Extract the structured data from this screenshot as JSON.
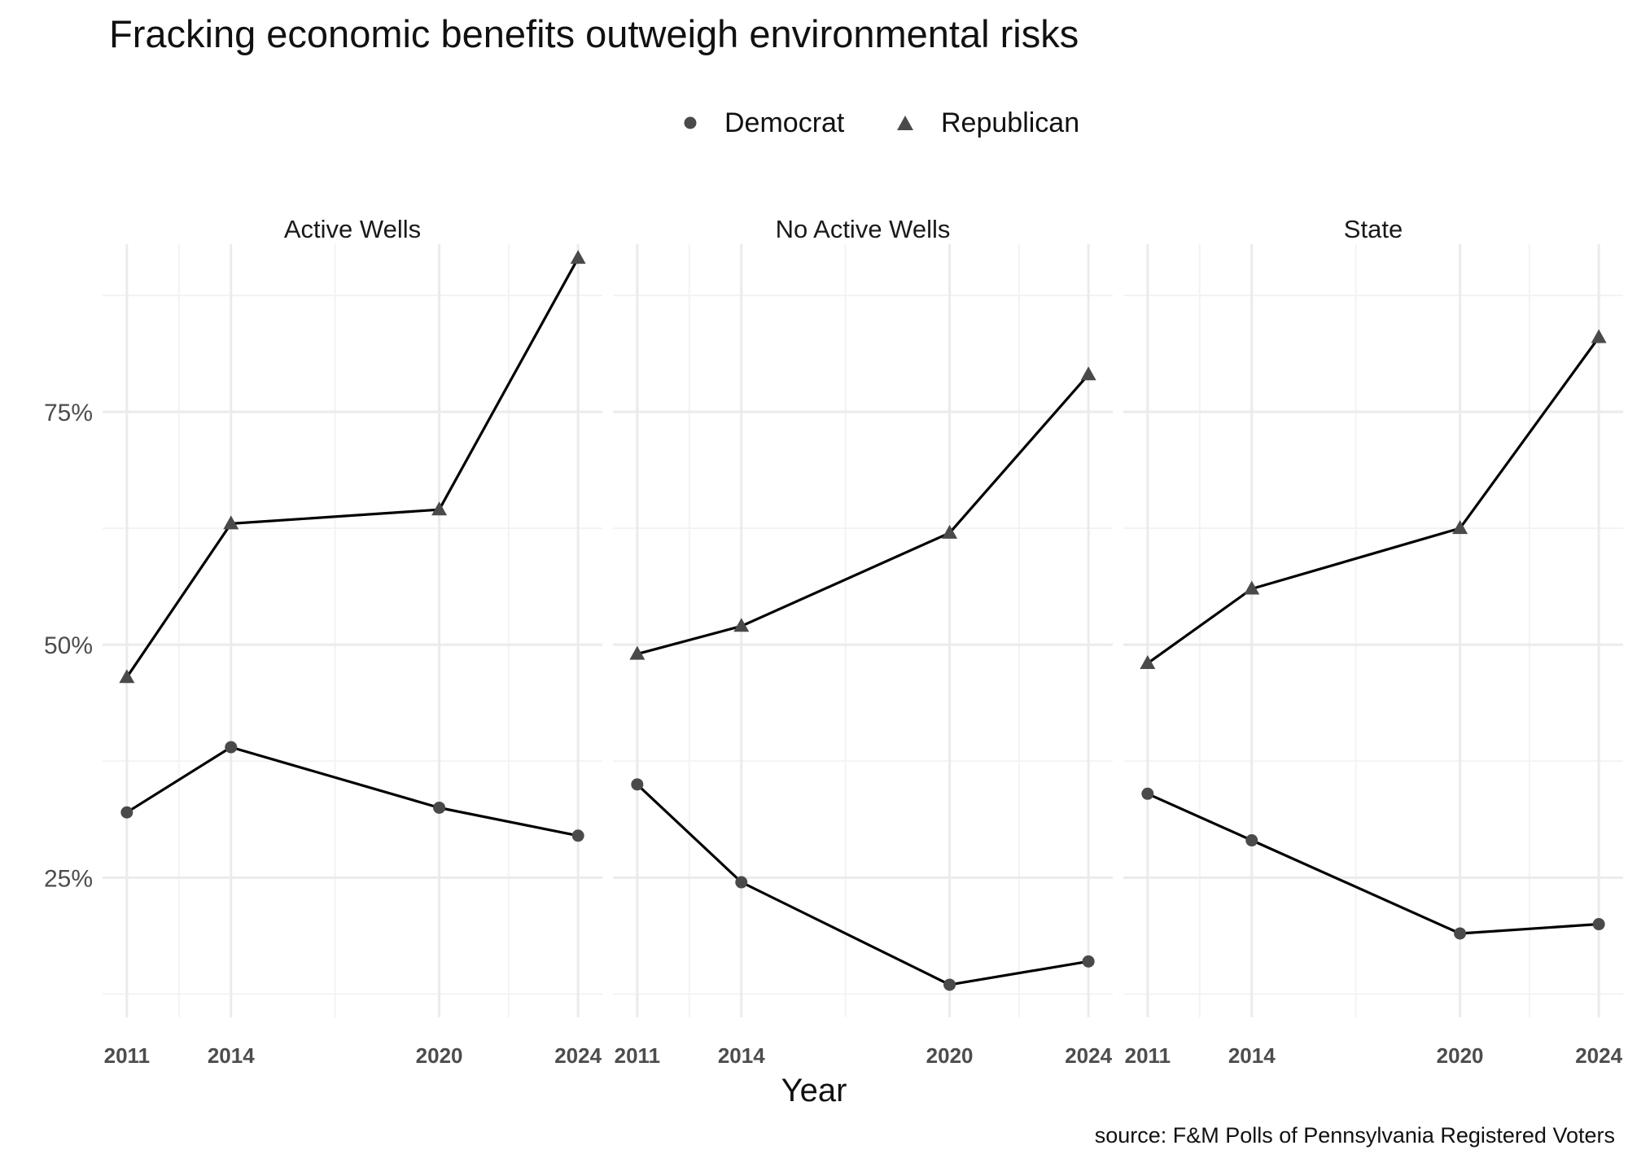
{
  "title": "Fracking economic benefits outweigh environmental risks",
  "legend": [
    {
      "label": "Democrat",
      "shape": "circle"
    },
    {
      "label": "Republican",
      "shape": "triangle"
    }
  ],
  "x_title": "Year",
  "caption": "source: F&M Polls of Pennsylvania Registered Voters",
  "colors": {
    "point": "#4a4a4a",
    "line": "#000000",
    "grid_major": "#ebebeb",
    "grid_minor": "#f3f3f3",
    "tick_label": "#4d4d4d"
  },
  "chart_data": {
    "type": "line",
    "facets": [
      {
        "label": "Active Wells",
        "series": [
          {
            "name": "Democrat",
            "x": [
              2011,
              2014,
              2020,
              2024
            ],
            "values": [
              32,
              39,
              32.5,
              29.5
            ]
          },
          {
            "name": "Republican",
            "x": [
              2011,
              2014,
              2020,
              2024
            ],
            "values": [
              46.5,
              63,
              64.5,
              91.5
            ]
          }
        ]
      },
      {
        "label": "No Active Wells",
        "series": [
          {
            "name": "Democrat",
            "x": [
              2011,
              2014,
              2020,
              2024
            ],
            "values": [
              35,
              24.5,
              13.5,
              16
            ]
          },
          {
            "name": "Republican",
            "x": [
              2011,
              2014,
              2020,
              2024
            ],
            "values": [
              49,
              52,
              62,
              79
            ]
          }
        ]
      },
      {
        "label": "State",
        "series": [
          {
            "name": "Democrat",
            "x": [
              2011,
              2014,
              2020,
              2024
            ],
            "values": [
              34,
              29,
              19,
              20
            ]
          },
          {
            "name": "Republican",
            "x": [
              2011,
              2014,
              2020,
              2024
            ],
            "values": [
              48,
              56,
              62.5,
              83
            ]
          }
        ]
      }
    ],
    "x_ticks": [
      2011,
      2014,
      2020,
      2024
    ],
    "x_tick_labels": [
      "2011",
      "2014",
      "2020",
      "2024"
    ],
    "xlim": [
      2010.3,
      2024.7
    ],
    "y_ticks": [
      25,
      50,
      75
    ],
    "y_tick_labels": [
      "25%",
      "50%",
      "75%"
    ],
    "ylim": [
      10,
      93
    ],
    "xlabel": "Year",
    "ylabel": "",
    "grid": true,
    "legend_position": "top-center"
  }
}
